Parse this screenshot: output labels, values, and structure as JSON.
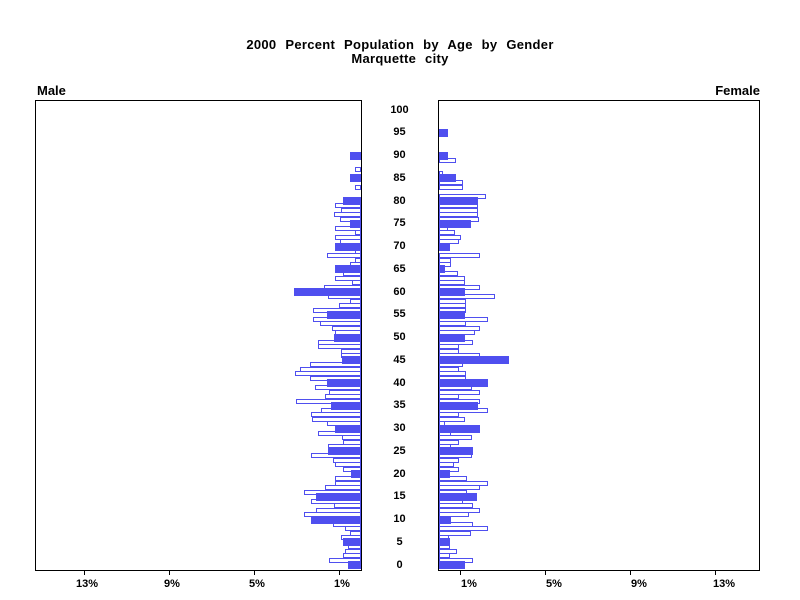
{
  "title": {
    "line1": "2000 Percent Population by Age by Gender",
    "line2": "Marquette city"
  },
  "panels": {
    "male_label": "Male",
    "female_label": "Female"
  },
  "chart_data": {
    "type": "bar",
    "subtype": "population-pyramid",
    "title": "2000 Percent Population by Age by Gender",
    "subtitle": "Marquette city",
    "orientation": "horizontal, male bars grow left, female bars grow right",
    "age_axis": {
      "min": 0,
      "max": 100,
      "tick_step": 5,
      "tick_labels": [
        "0",
        "5",
        "10",
        "15",
        "20",
        "25",
        "30",
        "35",
        "40",
        "45",
        "50",
        "55",
        "60",
        "65",
        "70",
        "75",
        "80",
        "85",
        "90",
        "95",
        "100"
      ]
    },
    "percent_axis": {
      "tick_values": [
        1,
        5,
        9,
        13
      ],
      "tick_labels": [
        "1%",
        "5%",
        "9%",
        "13%"
      ],
      "max_percent_extent": 15.3,
      "unit": "percent of population"
    },
    "highlight_rule": "bars for ages divisible by 5 are solid blue; other single-year ages are white with blue outline",
    "colors": {
      "highlight_fill": "#4F4FEF",
      "bar_outline": "#4F4FEF",
      "bar_fill": "#FFFFFF",
      "axis": "#000000",
      "text": "#000000",
      "background": "#FFFFFF"
    },
    "series": [
      {
        "name": "Male",
        "ages": "index equals single year of age 0-100",
        "values": [
          0.6,
          1.5,
          0.85,
          0.75,
          0.6,
          0.85,
          0.95,
          0.5,
          0.75,
          1.3,
          2.35,
          2.7,
          2.1,
          1.25,
          2.35,
          2.1,
          2.7,
          1.7,
          1.2,
          1.2,
          0.45,
          0.85,
          1.2,
          1.3,
          2.35,
          1.55,
          1.55,
          0.85,
          0.9,
          2.0,
          1.2,
          1.6,
          2.3,
          2.35,
          1.9,
          1.4,
          3.05,
          1.7,
          1.5,
          2.15,
          1.6,
          2.4,
          3.1,
          2.85,
          2.4,
          0.9,
          0.95,
          0.95,
          2.0,
          2.0,
          1.25,
          1.2,
          1.35,
          1.95,
          2.25,
          1.6,
          2.25,
          1.05,
          0.5,
          1.55,
          3.15,
          1.75,
          0.4,
          1.2,
          0.85,
          1.2,
          0.5,
          0.3,
          1.6,
          0.3,
          1.2,
          1.0,
          1.2,
          0.3,
          1.2,
          0.5,
          1.0,
          1.25,
          0.95,
          1.2,
          0.85,
          0,
          0,
          0.3,
          0,
          0.5,
          0,
          0.3,
          0,
          0,
          0.5,
          0,
          0,
          0,
          0,
          0,
          0,
          0,
          0,
          0,
          0
        ]
      },
      {
        "name": "Female",
        "ages": "index equals single year of age 0-100",
        "values": [
          1.2,
          1.6,
          0.5,
          0.85,
          0.5,
          0.5,
          0.45,
          1.5,
          2.3,
          1.6,
          0.55,
          1.4,
          1.95,
          1.6,
          1.15,
          1.8,
          1.3,
          1.95,
          2.3,
          1.3,
          0.5,
          0.95,
          0.7,
          0.95,
          1.55,
          1.6,
          0.55,
          0.95,
          1.55,
          0.55,
          1.95,
          0.3,
          1.2,
          0.95,
          2.3,
          1.85,
          1.95,
          0.95,
          1.95,
          1.55,
          2.3,
          1.25,
          1.25,
          0.95,
          1.15,
          3.3,
          1.95,
          0.95,
          0.95,
          1.6,
          1.2,
          1.7,
          1.95,
          1.25,
          2.3,
          1.2,
          1.25,
          1.25,
          1.25,
          2.65,
          1.2,
          1.95,
          1.2,
          1.2,
          0.9,
          0.3,
          0.55,
          0.55,
          1.95,
          0,
          0.5,
          0.95,
          1.05,
          0.75,
          0.4,
          1.5,
          1.9,
          1.85,
          1.85,
          1.85,
          1.85,
          2.2,
          0,
          1.15,
          1.15,
          0.8,
          0.2,
          0,
          0,
          0.8,
          0.4,
          0,
          0,
          0,
          0,
          0.4,
          0,
          0,
          0,
          0,
          0
        ]
      }
    ]
  }
}
